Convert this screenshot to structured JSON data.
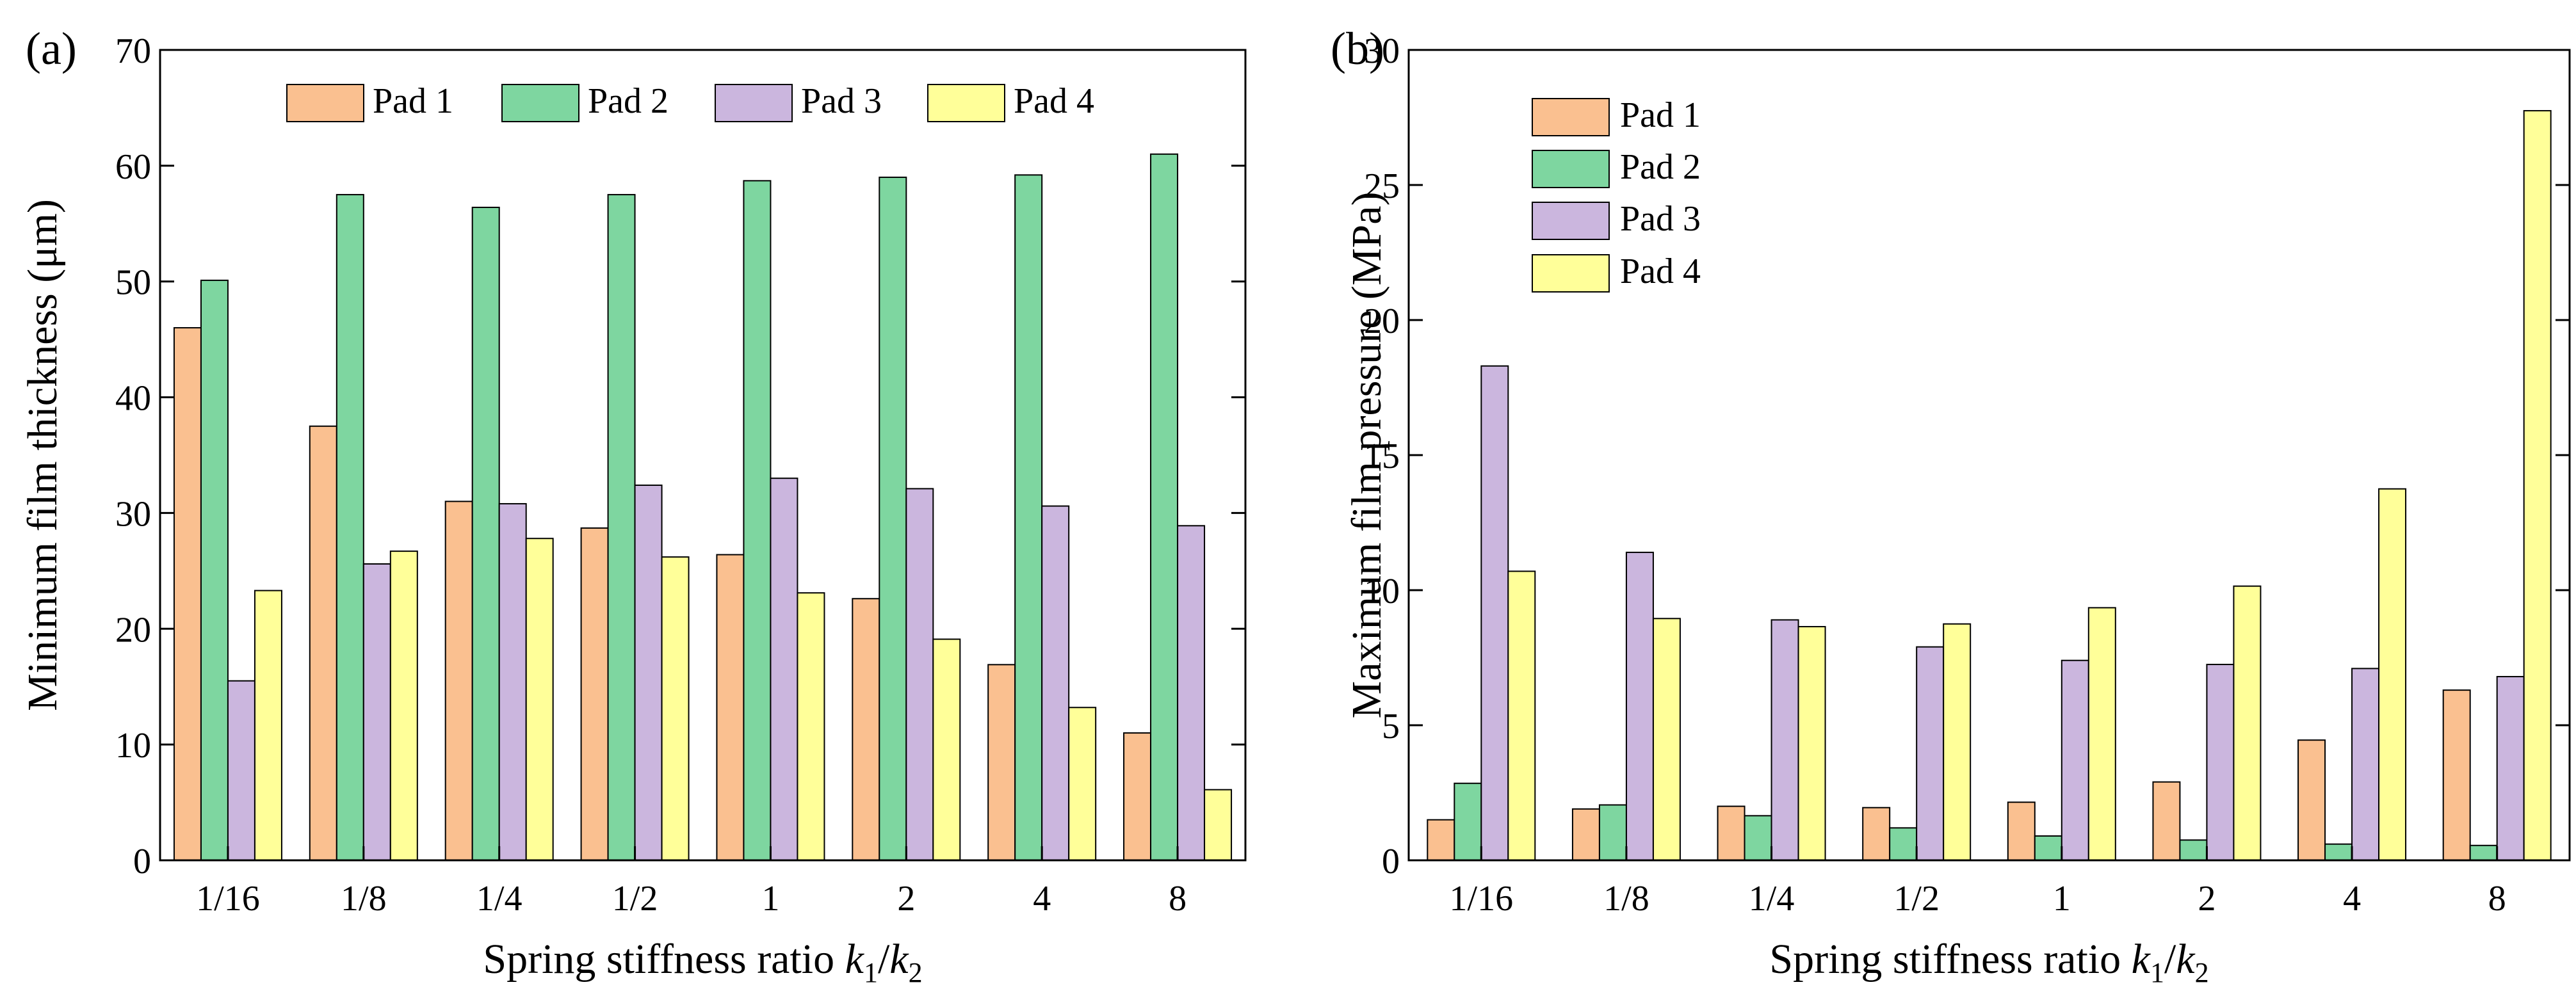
{
  "figure": {
    "panels": [
      "(a)",
      "(b)"
    ]
  },
  "colors": {
    "Pad 1": "#FAC090",
    "Pad 2": "#7ED6A0",
    "Pad 3": "#CBB6DE",
    "Pad 4": "#FFFF99"
  },
  "chart_data": [
    {
      "panel": "(a)",
      "type": "bar",
      "title": "",
      "categories": [
        "1/16",
        "1/8",
        "1/4",
        "1/2",
        "1",
        "2",
        "4",
        "8"
      ],
      "series": [
        {
          "name": "Pad 1",
          "values": [
            46.0,
            37.5,
            31.0,
            28.7,
            26.4,
            22.6,
            16.9,
            11.0
          ]
        },
        {
          "name": "Pad 2",
          "values": [
            50.1,
            57.5,
            56.4,
            57.5,
            58.7,
            59.0,
            59.2,
            61.0
          ]
        },
        {
          "name": "Pad 3",
          "values": [
            15.5,
            25.6,
            30.8,
            32.4,
            33.0,
            32.1,
            30.6,
            28.9
          ]
        },
        {
          "name": "Pad 4",
          "values": [
            23.3,
            26.7,
            27.8,
            26.2,
            23.1,
            19.1,
            13.2,
            6.1
          ]
        }
      ],
      "xlabel": "Spring stiffness ratio k1/k2",
      "xlabel_parts": {
        "prefix": "Spring stiffness ratio ",
        "var1": "k",
        "sub1": "1",
        "slash": "/",
        "var2": "k",
        "sub2": "2"
      },
      "ylabel": "Minimum film thickness (μm)",
      "ylim": [
        0,
        70
      ],
      "yticks": [
        "0",
        "10",
        "20",
        "30",
        "40",
        "50",
        "60",
        "70"
      ],
      "legend": {
        "placement": "top",
        "orientation": "horizontal",
        "entries": [
          "Pad 1",
          "Pad 2",
          "Pad 3",
          "Pad 4"
        ]
      }
    },
    {
      "panel": "(b)",
      "type": "bar",
      "title": "",
      "categories": [
        "1/16",
        "1/8",
        "1/4",
        "1/2",
        "1",
        "2",
        "4",
        "8"
      ],
      "series": [
        {
          "name": "Pad 1",
          "values": [
            1.5,
            1.9,
            2.0,
            1.95,
            2.15,
            2.9,
            4.45,
            6.3
          ]
        },
        {
          "name": "Pad 2",
          "values": [
            2.85,
            2.05,
            1.65,
            1.2,
            0.9,
            0.75,
            0.6,
            0.55
          ]
        },
        {
          "name": "Pad 3",
          "values": [
            18.3,
            11.4,
            8.9,
            7.9,
            7.4,
            7.25,
            7.1,
            6.8
          ]
        },
        {
          "name": "Pad 4",
          "values": [
            10.7,
            8.95,
            8.65,
            8.75,
            9.35,
            10.15,
            13.75,
            27.75
          ]
        }
      ],
      "xlabel": "Spring stiffness ratio k1/k2",
      "xlabel_parts": {
        "prefix": "Spring stiffness ratio ",
        "var1": "k",
        "sub1": "1",
        "slash": "/",
        "var2": "k",
        "sub2": "2"
      },
      "ylabel": "Maximum film pressure (MPa)",
      "ylim": [
        0,
        30
      ],
      "yticks": [
        "0",
        "5",
        "10",
        "15",
        "20",
        "25",
        "30"
      ],
      "legend": {
        "placement": "top-left",
        "orientation": "vertical",
        "entries": [
          "Pad 1",
          "Pad 2",
          "Pad 3",
          "Pad 4"
        ]
      }
    }
  ]
}
